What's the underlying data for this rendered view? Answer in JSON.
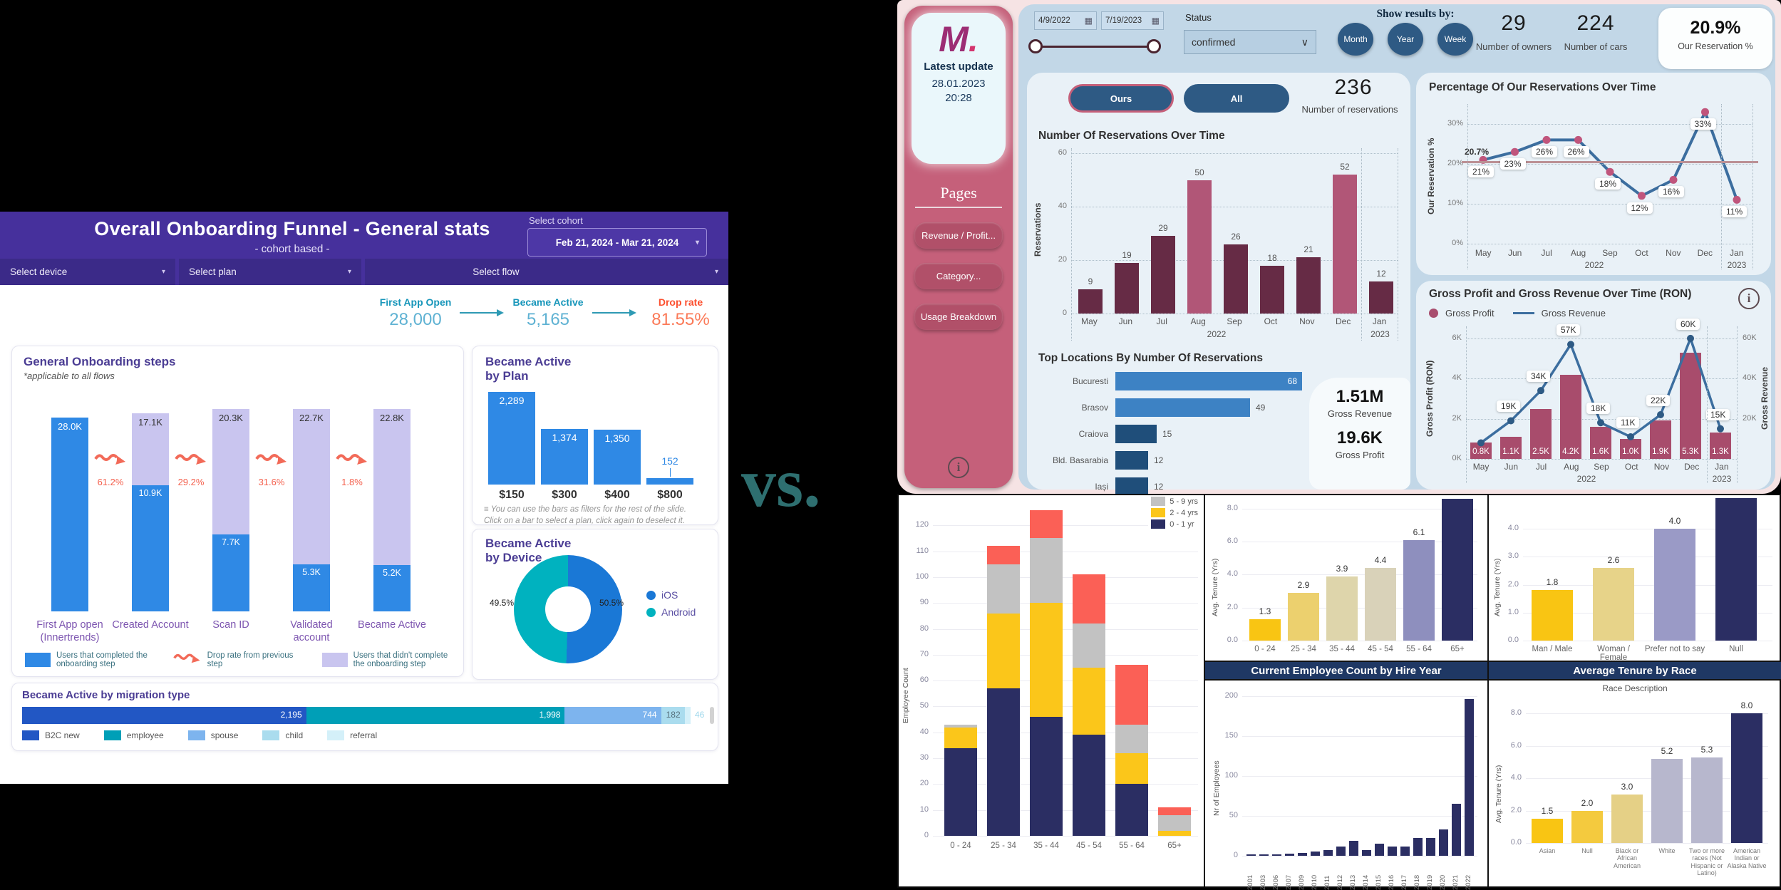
{
  "vs_label": "vs.",
  "icons": {
    "chevron_down": "▾",
    "select_caret": "∨",
    "calendar": "▦",
    "info": "i",
    "filter": "≡"
  },
  "onboarding_dashboard": {
    "header": {
      "title": "Overall Onboarding Funnel  - General stats",
      "subtitle": "- cohort based -",
      "cohort_label": "Select cohort",
      "cohort_value": "Feb 21, 2024 - Mar 21, 2024",
      "device_filter": "Select device",
      "plan_filter": "Select plan",
      "flow_filter": "Select flow"
    },
    "kpi": {
      "first_open_label": "First App Open",
      "first_open_value": "28,000",
      "became_active_label": "Became Active",
      "became_active_value": "5,165",
      "drop_rate_label": "Drop rate",
      "drop_rate_value": "81.55%"
    },
    "steps_chart": {
      "title": "General Onboarding steps",
      "note": "*applicable to all flows",
      "steps": [
        {
          "label": "First App open (Innertrends)",
          "total_label": "28.0K",
          "total": 28000,
          "completed": 28000,
          "completed_label": ""
        },
        {
          "label": "Created Account",
          "total_label": "17.1K",
          "total": 17100,
          "completed": 10900,
          "completed_label": "10.9K"
        },
        {
          "label": "Scan ID",
          "total_label": "20.3K",
          "total": 20300,
          "completed": 7700,
          "completed_label": "7.7K"
        },
        {
          "label": "Validated account",
          "total_label": "22.7K",
          "total": 22700,
          "completed": 5300,
          "completed_label": "5.3K"
        },
        {
          "label": "Became Active",
          "total_label": "22.8K",
          "total": 22800,
          "completed": 5200,
          "completed_label": "5.2K"
        }
      ],
      "drop_rates": [
        "61.2%",
        "29.2%",
        "31.6%",
        "1.8%"
      ],
      "legend_completed": "Users that completed the onboarding step",
      "legend_drop": "Drop rate from previous step",
      "legend_not_completed": "Users that didn't complete the onboarding step"
    },
    "plan_chart": {
      "title_line1": "Became Active",
      "title_line2": "by Plan",
      "categories": [
        "$150",
        "$300",
        "$400",
        "$800"
      ],
      "values": [
        2289,
        1374,
        1350,
        152
      ],
      "value_labels": [
        "2,289",
        "1,374",
        "1,350",
        "152"
      ],
      "note_line1": "You can use the bars as filters for the rest of the slide.",
      "note_line2": "Click on a bar to select a plan, click again to deselect it."
    },
    "device_chart": {
      "title_line1": "Became Active",
      "title_line2": "by Device",
      "slices": [
        {
          "label": "iOS",
          "pct": 50.5,
          "pct_label": "50.5%",
          "color": "#1a78d6"
        },
        {
          "label": "Android",
          "pct": 49.5,
          "pct_label": "49.5%",
          "color": "#00b2bf"
        }
      ]
    },
    "migration_chart": {
      "title": "Became Active by migration type",
      "segments": [
        {
          "label": "B2C new",
          "value": 2195,
          "value_label": "2,195",
          "color": "#2257c4"
        },
        {
          "label": "employee",
          "value": 1998,
          "value_label": "1,998",
          "color": "#009fb7"
        },
        {
          "label": "spouse",
          "value": 744,
          "value_label": "744",
          "color": "#7db4ee"
        },
        {
          "label": "child",
          "value": 182,
          "value_label": "182",
          "color": "#aadcee"
        },
        {
          "label": "referral",
          "value": 46,
          "value_label": "46",
          "color": "#d4f0f9"
        }
      ]
    }
  },
  "reservations_dashboard": {
    "sidebar": {
      "logo": "M",
      "logo_dot": ".",
      "latest_update_label": "Latest update",
      "latest_update_date": "28.01.2023",
      "latest_update_time": "20:28",
      "pages_label": "Pages",
      "pages": [
        "Revenue / Profit...",
        "Category...",
        "Usage Breakdown"
      ]
    },
    "controls": {
      "date_from": "4/9/2022",
      "date_to": "7/19/2023",
      "status_label": "Status",
      "status_value": "confirmed",
      "show_results_label": "Show results by:",
      "period_buttons": [
        "Month",
        "Year",
        "Week"
      ],
      "owners_value": "29",
      "owners_label": "Number of owners",
      "cars_value": "224",
      "cars_label": "Number of cars",
      "reservation_pct_value": "20.9%",
      "reservation_pct_label": "Our Reservation %"
    },
    "toggle": {
      "ours": "Ours",
      "all": "All"
    },
    "reservations_kpi": {
      "value": "236",
      "label": "Number of reservations"
    },
    "res_chart": {
      "type": "bar",
      "title": "Number Of Reservations Over Time",
      "ylabel": "Reservations",
      "yticks": [
        0,
        20,
        40,
        60
      ],
      "months": [
        "May",
        "Jun",
        "Jul",
        "Aug",
        "Sep",
        "Oct",
        "Nov",
        "Dec",
        "Jan"
      ],
      "year_2022": "2022",
      "year_2023": "2023",
      "values": [
        9,
        19,
        29,
        50,
        26,
        18,
        21,
        52,
        12
      ],
      "highlight": [
        3,
        7
      ],
      "bar_color": "#662b45",
      "highlight_color": "#b15677"
    },
    "locations_chart": {
      "type": "bar",
      "title": "Top Locations By Number Of Reservations",
      "rows": [
        {
          "label": "Bucuresti",
          "value": 68
        },
        {
          "label": "Brasov",
          "value": 49
        },
        {
          "label": "Craiova",
          "value": 15
        },
        {
          "label": "Bld. Basarabia",
          "value": 12
        },
        {
          "label": "Iași",
          "value": 12
        }
      ]
    },
    "revenue_kpi": {
      "value": "1.51M",
      "label": "Gross Revenue"
    },
    "profit_kpi": {
      "value": "19.6K",
      "label": "Gross Profit"
    },
    "pct_chart": {
      "type": "line",
      "title": "Percentage Of Our Reservations Over Time",
      "ylabel": "Our Reservation %",
      "yticks": [
        "0%",
        "10%",
        "20%",
        "30%"
      ],
      "ytick_vals": [
        0,
        10,
        20,
        30
      ],
      "months": [
        "May",
        "Jun",
        "Jul",
        "Aug",
        "Sep",
        "Oct",
        "Nov",
        "Dec",
        "Jan"
      ],
      "year_2022": "2022",
      "year_2023": "2023",
      "values": [
        21,
        23,
        26,
        26,
        18,
        12,
        16,
        33,
        11
      ],
      "value_labels": [
        "21%",
        "23%",
        "26%",
        "26%",
        "18%",
        "12%",
        "16%",
        "33%",
        "11%"
      ],
      "ref_value": 20.7,
      "ref_label": "20.7%",
      "line_color": "#3c6e9f",
      "dot_color": "#c0557c"
    },
    "gross_chart": {
      "type": "combo",
      "title": "Gross Profit and Gross Revenue Over Time (RON)",
      "legend_profit": "Gross Profit",
      "legend_revenue": "Gross Revenue",
      "ylabel_left": "Gross Profit (RON)",
      "ylabel_right": "Gross Revenue",
      "yticks_left": [
        "0K",
        "2K",
        "4K",
        "6K"
      ],
      "yticks_left_vals": [
        0,
        2,
        4,
        6
      ],
      "yticks_right": [
        "20K",
        "40K",
        "60K"
      ],
      "yticks_right_vals": [
        20,
        40,
        60
      ],
      "months": [
        "May",
        "Jun",
        "Jul",
        "Aug",
        "Sep",
        "Oct",
        "Nov",
        "Dec",
        "Jan"
      ],
      "year_2022": "2022",
      "year_2023": "2023",
      "profit_values": [
        0.8,
        1.1,
        2.5,
        4.2,
        1.6,
        1.0,
        1.9,
        5.3,
        1.3
      ],
      "profit_labels": [
        "0.8K",
        "1.1K",
        "2.5K",
        "4.2K",
        "1.6K",
        "1.0K",
        "1.9K",
        "5.3K",
        "1.3K"
      ],
      "revenue_values": [
        8,
        19,
        34,
        57,
        18,
        11,
        22,
        60,
        15
      ],
      "revenue_labels": [
        "",
        "19K",
        "34K",
        "57K",
        "18K",
        "11K",
        "22K",
        "60K",
        "15K"
      ]
    }
  },
  "hr_dashboard": {
    "age_stack": {
      "type": "stacked-bar",
      "ylabel": "Employee Count",
      "ytick_vals": [
        0,
        10,
        20,
        30,
        40,
        50,
        60,
        70,
        80,
        90,
        100,
        110,
        120
      ],
      "categories": [
        "0 - 24",
        "25 - 34",
        "35 - 44",
        "45 - 54",
        "55 - 64",
        "65+"
      ],
      "series": [
        {
          "name": "0 - 1 yr",
          "color": "#2b2e63",
          "values": [
            34,
            57,
            46,
            39,
            20,
            0
          ]
        },
        {
          "name": "2 - 4 yrs",
          "color": "#fbc61a",
          "values": [
            8,
            29,
            44,
            26,
            12,
            2
          ]
        },
        {
          "name": "5 - 9 yrs",
          "color": "#c2c2c2",
          "values": [
            1,
            19,
            25,
            17,
            11,
            6
          ]
        },
        {
          "name": "10+ yrs",
          "color": "#fb6056",
          "values": [
            0,
            7,
            11,
            19,
            23,
            3
          ]
        }
      ],
      "legend": [
        {
          "label": "5 - 9 yrs",
          "color": "#c2c2c2"
        },
        {
          "label": "2 - 4 yrs",
          "color": "#fbc61a"
        },
        {
          "label": "0 - 1 yr",
          "color": "#2b2e63"
        }
      ]
    },
    "tenure_age": {
      "type": "bar",
      "ylabel": "Avg. Tenure (Yrs)",
      "yticks": [
        "0.0",
        "2.0",
        "4.0",
        "6.0",
        "8.0"
      ],
      "ytick_vals": [
        0,
        2,
        4,
        6,
        8
      ],
      "categories": [
        "0 - 24",
        "25 - 34",
        "35 - 44",
        "45 - 54",
        "55 - 64",
        "65+"
      ],
      "values": [
        1.3,
        2.9,
        3.9,
        4.4,
        6.1,
        8.6
      ],
      "value_labels": [
        "1.3",
        "2.9",
        "3.9",
        "4.4",
        "6.1",
        ""
      ],
      "colors": [
        "#f9c513",
        "#ecd06e",
        "#ded5ab",
        "#d9d2b9",
        "#8e8fbe",
        "#2b2e63"
      ]
    },
    "hire_year": {
      "type": "bar",
      "header": "Current Employee Count by Hire Year",
      "ylabel": "Nr of Employees",
      "yticks": [
        "0",
        "50",
        "100",
        "150",
        "200"
      ],
      "ytick_vals": [
        0,
        50,
        100,
        150,
        200
      ],
      "categories": [
        "2001",
        "2003",
        "2006",
        "2007",
        "2009",
        "2010",
        "2011",
        "2012",
        "2013",
        "2014",
        "2015",
        "2016",
        "2017",
        "2018",
        "2019",
        "2020",
        "2021",
        "2022"
      ],
      "values": [
        2,
        2,
        2,
        3,
        4,
        5,
        7,
        12,
        19,
        7,
        15,
        12,
        12,
        22,
        22,
        33,
        65,
        196
      ],
      "bar_color": "#2b2e63"
    },
    "tenure_gender": {
      "type": "bar",
      "ylabel": "Avg. Tenure (Yrs)",
      "yticks": [
        "0.0",
        "1.0",
        "2.0",
        "3.0",
        "4.0"
      ],
      "ytick_vals": [
        0,
        1,
        2,
        3,
        4
      ],
      "categories": [
        "Man / Male",
        "Woman / Female",
        "Prefer not to say",
        "Null"
      ],
      "values": [
        1.8,
        2.6,
        4.0,
        5.1
      ],
      "value_labels": [
        "1.8",
        "2.6",
        "4.0",
        ""
      ],
      "colors": [
        "#f9c513",
        "#e7d389",
        "#9a9ac6",
        "#2b2e63"
      ]
    },
    "tenure_race": {
      "type": "bar",
      "header": "Average Tenure by Race",
      "xlabel": "Race Description",
      "ylabel": "Avg. Tenure (Yrs)",
      "yticks": [
        "0.0",
        "2.0",
        "4.0",
        "6.0",
        "8.0"
      ],
      "ytick_vals": [
        0,
        2,
        4,
        6,
        8
      ],
      "categories": [
        "Asian",
        "Null",
        "Black or African American",
        "White",
        "Two or more races (Not Hispanic or Latino)",
        "American Indian or Alaska Native"
      ],
      "values": [
        1.5,
        2.0,
        3.0,
        5.2,
        5.3,
        8.0
      ],
      "value_labels": [
        "1.5",
        "2.0",
        "3.0",
        "5.2",
        "5.3",
        "8.0"
      ],
      "colors": [
        "#f9c513",
        "#f4ca3e",
        "#e5d086",
        "#b7b7cd",
        "#b7b7cd",
        "#2b2e63"
      ]
    }
  }
}
